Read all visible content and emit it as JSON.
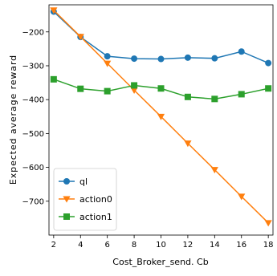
{
  "chart_data": {
    "type": "line",
    "xlabel": "Cost_Broker_send. Cb",
    "ylabel": "Expected average reward",
    "xlim": [
      1.65,
      18.35
    ],
    "ylim": [
      -800,
      -120
    ],
    "x": [
      2,
      4,
      6,
      8,
      10,
      12,
      14,
      16,
      18
    ],
    "xticks": [
      "2",
      "4",
      "6",
      "8",
      "10",
      "12",
      "14",
      "16",
      "18"
    ],
    "yticks": [
      -200,
      -300,
      -400,
      -500,
      -600,
      -700
    ],
    "ytick_labels": [
      "−200",
      "−300",
      "−400",
      "−500",
      "−600",
      "−700"
    ],
    "grid": false,
    "legend_position": "bottom-left",
    "series": [
      {
        "name": "ql",
        "color": "#1f77b4",
        "marker": "circle",
        "values": [
          -140,
          -215,
          -272,
          -279,
          -280,
          -276,
          -278,
          -258,
          -292
        ]
      },
      {
        "name": "action0",
        "color": "#ff7f0e",
        "marker": "triangle-down",
        "values": [
          -136,
          -214,
          -293,
          -372,
          -450,
          -529,
          -607,
          -686,
          -764
        ]
      },
      {
        "name": "action1",
        "color": "#2ca02c",
        "marker": "square",
        "values": [
          -340,
          -368,
          -375,
          -358,
          -367,
          -392,
          -398,
          -384,
          -367
        ]
      }
    ]
  }
}
